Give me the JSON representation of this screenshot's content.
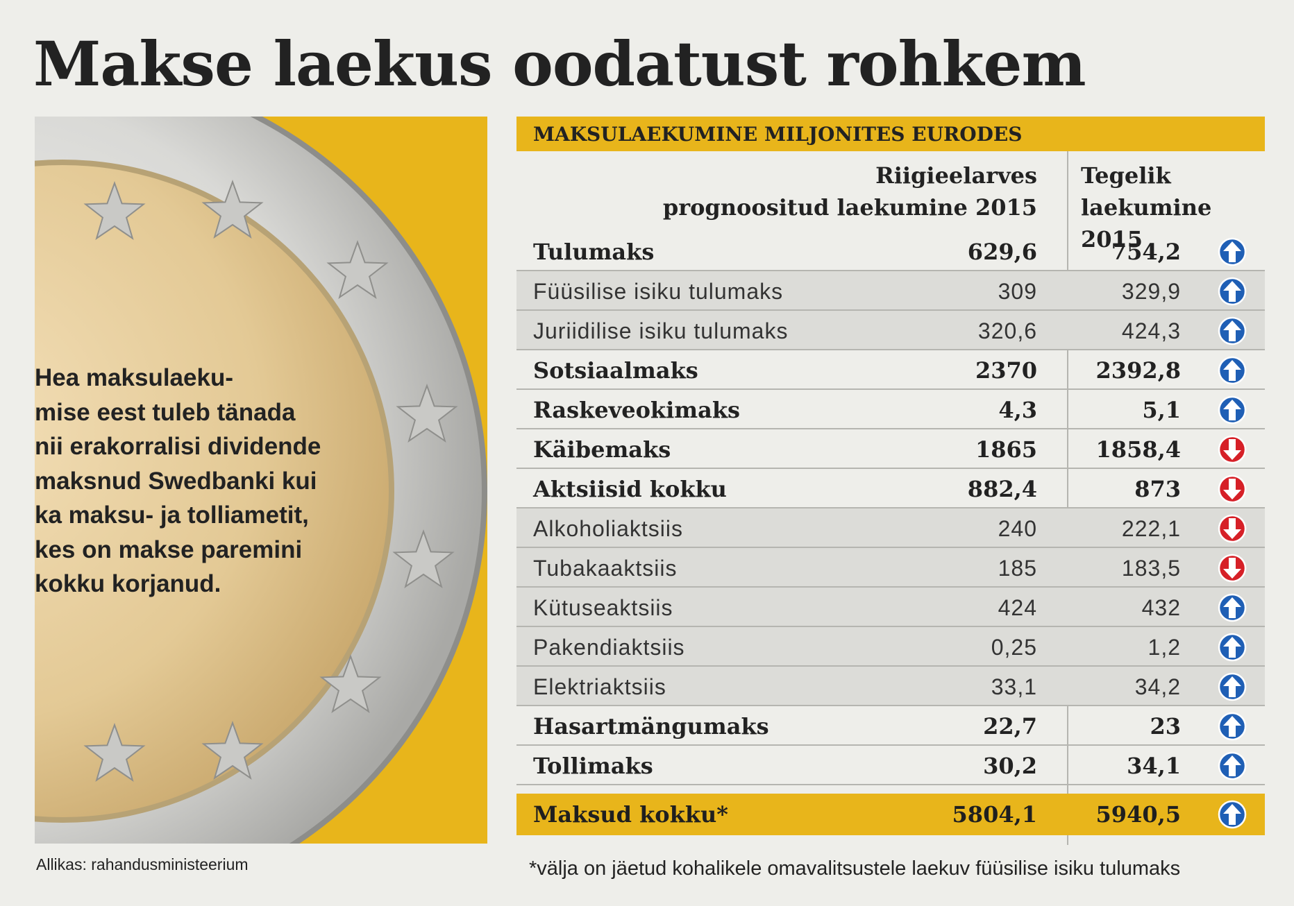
{
  "title": "Makse laekus oodatust rohkem",
  "callout": "Hea maksulaeku-\nmise eest tuleb tänada\nnii erakorralisi dividende\nmaksnud Swedbanki kui\nka maksu- ja tolliametit,\nkes on makse paremini\nkokku korjanud.",
  "source": "Allikas: rahandusministeerium",
  "footnote": "*välja on jäetud kohalikele omavalitsustele laekuv füüsilise isiku tulumaks",
  "colors": {
    "accent_yellow": "#e8b51b",
    "arrow_up": "#1f5fb5",
    "arrow_down": "#d62027",
    "background": "#eeeeea"
  },
  "icons": {
    "up": "arrow-up-circle-icon",
    "down": "arrow-down-circle-icon"
  },
  "chart_data": {
    "type": "table",
    "title": "MAKSULAEKUMINE MILJONITES EURODES",
    "columns": [
      "Riigieelarves\nprognoositud laekumine 2015",
      "Tegelik\nlaekumine 2015"
    ],
    "rows": [
      {
        "label": "Tulumaks",
        "forecast": "629,6",
        "actual": "754,2",
        "trend": "up",
        "style": "main"
      },
      {
        "label": "Füüsilise isiku tulumaks",
        "forecast": "309",
        "actual": "329,9",
        "trend": "up",
        "style": "sub"
      },
      {
        "label": "Juriidilise isiku tulumaks",
        "forecast": "320,6",
        "actual": "424,3",
        "trend": "up",
        "style": "sub"
      },
      {
        "label": "Sotsiaalmaks",
        "forecast": "2370",
        "actual": "2392,8",
        "trend": "up",
        "style": "main"
      },
      {
        "label": "Raskeveokimaks",
        "forecast": "4,3",
        "actual": "5,1",
        "trend": "up",
        "style": "main"
      },
      {
        "label": "Käibemaks",
        "forecast": "1865",
        "actual": "1858,4",
        "trend": "down",
        "style": "main"
      },
      {
        "label": "Aktsiisid kokku",
        "forecast": "882,4",
        "actual": "873",
        "trend": "down",
        "style": "main"
      },
      {
        "label": "Alkoholiaktsiis",
        "forecast": "240",
        "actual": "222,1",
        "trend": "down",
        "style": "sub"
      },
      {
        "label": "Tubakaaktsiis",
        "forecast": "185",
        "actual": "183,5",
        "trend": "down",
        "style": "sub"
      },
      {
        "label": "Kütuseaktsiis",
        "forecast": "424",
        "actual": "432",
        "trend": "up",
        "style": "sub"
      },
      {
        "label": "Pakendiaktsiis",
        "forecast": "0,25",
        "actual": "1,2",
        "trend": "up",
        "style": "sub"
      },
      {
        "label": "Elektriaktsiis",
        "forecast": "33,1",
        "actual": "34,2",
        "trend": "up",
        "style": "sub"
      },
      {
        "label": "Hasartmängumaks",
        "forecast": "22,7",
        "actual": "23",
        "trend": "up",
        "style": "main"
      },
      {
        "label": "Tollimaks",
        "forecast": "30,2",
        "actual": "34,1",
        "trend": "up",
        "style": "main"
      }
    ],
    "total": {
      "label": "Maksud kokku*",
      "forecast": "5804,1",
      "actual": "5940,5",
      "trend": "up"
    }
  }
}
